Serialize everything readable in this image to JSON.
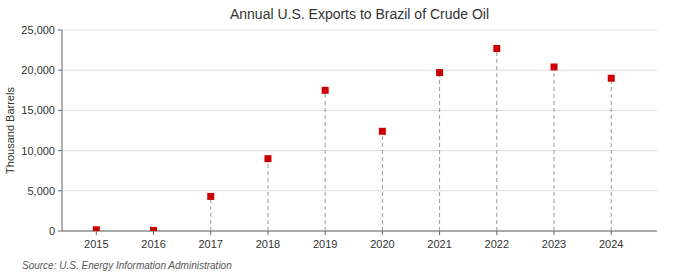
{
  "chart_data": {
    "type": "scatter",
    "title": "Annual U.S. Exports to Brazil of Crude Oil",
    "y_label": "Thousand Barrels",
    "source": "Source: U.S. Energy Information Administration",
    "x": [
      2015,
      2016,
      2017,
      2018,
      2019,
      2020,
      2021,
      2022,
      2023,
      2024
    ],
    "values": [
      150,
      80,
      4300,
      9000,
      17500,
      12400,
      19700,
      22700,
      20400,
      19000
    ],
    "color": "#cc0000",
    "marker": "square",
    "xlim": [
      2014.4,
      2024.8
    ],
    "xticks": [
      2015,
      2016,
      2017,
      2018,
      2019,
      2020,
      2021,
      2022,
      2023,
      2024
    ],
    "ylim": [
      0,
      25000
    ],
    "yticks": [
      0,
      {
        "value": 5000,
        "label": "5,000"
      },
      {
        "value": 10000,
        "label": "10,000"
      },
      {
        "value": 15000,
        "label": "15,000"
      },
      {
        "value": 20000,
        "label": "20,000"
      },
      {
        "value": 25000,
        "label": "25,000"
      }
    ],
    "grid": "y"
  }
}
